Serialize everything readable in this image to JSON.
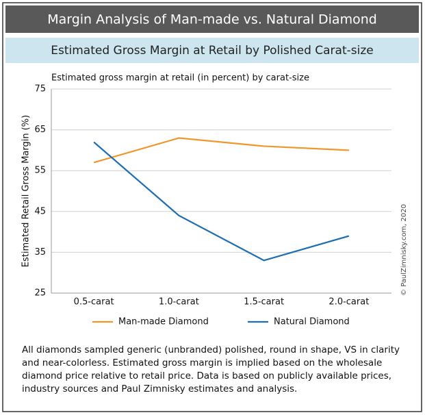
{
  "chart_data": {
    "type": "line",
    "title": "Margin Analysis of Man-made vs. Natural Diamond",
    "subtitle": "Estimated Gross Margin at Retail by Polished Carat-size",
    "plot_title": "Estimated gross margin at retail (in percent) by carat-size",
    "ylabel": "Estimated Retail Gross Margin (%)",
    "categories": [
      "0.5-carat",
      "1.0-carat",
      "1.5-carat",
      "2.0-carat"
    ],
    "series": [
      {
        "name": "Man-made Diamond",
        "color": "#f0962a",
        "values": [
          57,
          63,
          61,
          60
        ]
      },
      {
        "name": "Natural Diamond",
        "color": "#1d6db2",
        "values": [
          62,
          44,
          33,
          39
        ]
      }
    ],
    "ylim": [
      25,
      75
    ],
    "yticks": [
      25,
      35,
      45,
      55,
      65,
      75
    ],
    "grid": true,
    "legend": "bottom",
    "note": "All diamonds sampled generic (unbranded) polished, round in shape, VS in clarity and near-colorless. Estimated gross margin is implied based on the wholesale diamond price relative to retail price. Data is based on publicly available prices, industry sources and Paul Zimnisky estimates and analysis.",
    "credit": "© PaulZimnisky.com, 2020"
  }
}
